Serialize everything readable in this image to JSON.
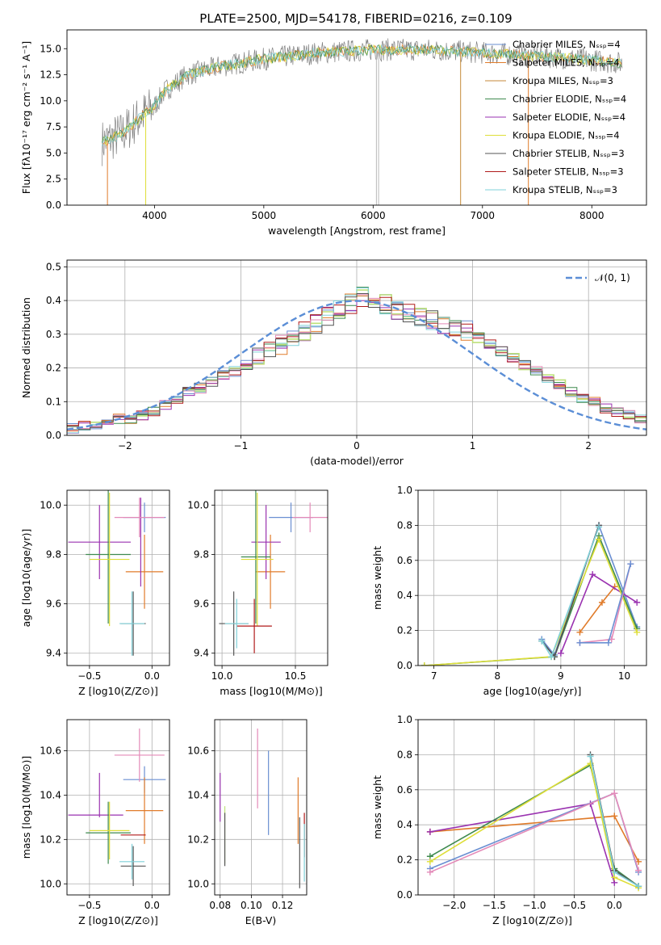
{
  "figure_title": "PLATE=2500, MJD=54178, FIBERID=0216, z=0.109",
  "palette": {
    "Chabrier MILES": "#6a8fd2",
    "Salpeter MILES": "#e07b2a",
    "Kroupa MILES": "#c58a38",
    "Chabrier ELODIE": "#3f8a4f",
    "Salpeter ELODIE": "#9a32b0",
    "Kroupa ELODIE": "#dede38",
    "Chabrier STELIB": "#555555",
    "Salpeter STELIB": "#b01a1a",
    "Kroupa STELIB": "#7fd0d8",
    "pink": "#e48ab8",
    "lime": "#bde07a",
    "normal_curve": "#5b8ed6"
  },
  "chart_data": [
    {
      "id": "spectrum",
      "type": "line",
      "xlabel": "wavelength [Angstrom, rest frame]",
      "ylabel": "Flux [fλ10⁻¹⁷ erg cm⁻² s⁻¹ A⁻¹]",
      "xlim": [
        3200,
        8500
      ],
      "ylim": [
        0,
        16.8
      ],
      "xticks": [
        "4000",
        "5000",
        "6000",
        "7000",
        "8000"
      ],
      "yticks": [
        "0.0",
        "2.5",
        "5.0",
        "7.5",
        "10.0",
        "12.5",
        "15.0"
      ],
      "continuum": [
        [
          3520,
          6.0
        ],
        [
          3700,
          6.8
        ],
        [
          3900,
          8.7
        ],
        [
          4000,
          9.5
        ],
        [
          4100,
          11.0
        ],
        [
          4300,
          12.5
        ],
        [
          4600,
          13.3
        ],
        [
          5000,
          14.0
        ],
        [
          5500,
          14.6
        ],
        [
          6000,
          14.9
        ],
        [
          6500,
          14.9
        ],
        [
          7000,
          14.6
        ],
        [
          7500,
          14.3
        ],
        [
          8000,
          13.9
        ],
        [
          8280,
          13.6
        ]
      ],
      "legend": [
        {
          "label": "Chabrier MILES, N_SSP=4"
        },
        {
          "label": "Salpeter MILES, N_SSP=4"
        },
        {
          "label": "Kroupa MILES, N_SSP=3"
        },
        {
          "label": "Chabrier ELODIE, N_SSP=4"
        },
        {
          "label": "Salpeter ELODIE, N_SSP=4"
        },
        {
          "label": "Kroupa ELODIE, N_SSP=4"
        },
        {
          "label": "Chabrier STELIB, N_SSP=3"
        },
        {
          "label": "Salpeter STELIB, N_SSP=3"
        },
        {
          "label": "Kroupa STELIB, N_SSP=3"
        }
      ]
    },
    {
      "id": "residuals",
      "type": "histogram",
      "xlabel": "(data-model)/error",
      "ylabel": "Normed distribution",
      "xlim": [
        -2.5,
        2.5
      ],
      "ylim": [
        0,
        0.52
      ],
      "xticks": [
        "−2",
        "−1",
        "0",
        "1",
        "2"
      ],
      "yticks": [
        "0.0",
        "0.1",
        "0.2",
        "0.3",
        "0.4",
        "0.5"
      ],
      "bin_width": 0.1,
      "bins_start": -2.5,
      "base_values": [
        0.02,
        0.03,
        0.03,
        0.04,
        0.05,
        0.05,
        0.06,
        0.07,
        0.09,
        0.11,
        0.13,
        0.14,
        0.16,
        0.18,
        0.19,
        0.21,
        0.23,
        0.25,
        0.27,
        0.29,
        0.31,
        0.33,
        0.35,
        0.37,
        0.39,
        0.41,
        0.4,
        0.39,
        0.37,
        0.36,
        0.35,
        0.34,
        0.33,
        0.32,
        0.31,
        0.29,
        0.27,
        0.25,
        0.23,
        0.21,
        0.19,
        0.17,
        0.15,
        0.13,
        0.11,
        0.1,
        0.08,
        0.07,
        0.06,
        0.05
      ],
      "legend": [
        {
          "label": "𝒩(0, 1)"
        }
      ]
    },
    {
      "id": "age-vs-Z",
      "type": "errorbar",
      "xlabel": "Z [log10(Z/Z⊙)]",
      "ylabel": "age  [log10(age/yr)]",
      "xlim": [
        -0.68,
        0.14
      ],
      "ylim": [
        9.35,
        10.06
      ],
      "xticks": [
        "−0.5",
        "0.0"
      ],
      "yticks": [
        "9.4",
        "9.6",
        "9.8",
        "10.0"
      ],
      "points": [
        {
          "model": "Chabrier MILES",
          "x": -0.06,
          "y": 9.95,
          "xerr": 0.17,
          "yerr": 0.06
        },
        {
          "model": "Salpeter MILES",
          "x": -0.06,
          "y": 9.73,
          "xerr": 0.15,
          "yerr": 0.15
        },
        {
          "model": "Salpeter ELODIE",
          "x": -0.42,
          "y": 9.85,
          "xerr": 0.25,
          "yerr": 0.15
        },
        {
          "model": "Salpeter ELODIE",
          "x": -0.09,
          "y": 9.85,
          "xerr": 0.0,
          "yerr": 0.18
        },
        {
          "model": "pink",
          "x": -0.1,
          "y": 9.95,
          "xerr": 0.2,
          "yerr": 0.08
        },
        {
          "model": "Chabrier ELODIE",
          "x": -0.35,
          "y": 9.8,
          "xerr": 0.18,
          "yerr": 0.28
        },
        {
          "model": "Kroupa ELODIE",
          "x": -0.34,
          "y": 9.78,
          "xerr": 0.16,
          "yerr": 0.27
        },
        {
          "model": "Chabrier STELIB",
          "x": -0.15,
          "y": 9.52,
          "xerr": 0.1,
          "yerr": 0.13
        },
        {
          "model": "Kroupa STELIB",
          "x": -0.16,
          "y": 9.52,
          "xerr": 0.1,
          "yerr": 0.13
        }
      ]
    },
    {
      "id": "age-vs-mass",
      "type": "errorbar",
      "xlabel": "mass [log10(M/M⊙)]",
      "ylabel": "",
      "xlim": [
        9.95,
        10.72
      ],
      "ylim": [
        9.35,
        10.06
      ],
      "xticks": [
        "10.0",
        "10.5"
      ],
      "yticks": [
        "9.4",
        "9.6",
        "9.8",
        "10.0"
      ],
      "points": [
        {
          "model": "Chabrier MILES",
          "x": 10.47,
          "y": 9.95,
          "xerr": 0.15,
          "yerr": 0.06
        },
        {
          "model": "Salpeter MILES",
          "x": 10.33,
          "y": 9.73,
          "xerr": 0.1,
          "yerr": 0.15
        },
        {
          "model": "Salpeter ELODIE",
          "x": 10.3,
          "y": 9.85,
          "xerr": 0.1,
          "yerr": 0.15
        },
        {
          "model": "pink",
          "x": 10.6,
          "y": 9.95,
          "xerr": 0.12,
          "yerr": 0.06
        },
        {
          "model": "Chabrier ELODIE",
          "x": 10.23,
          "y": 9.79,
          "xerr": 0.1,
          "yerr": 0.27
        },
        {
          "model": "Kroupa ELODIE",
          "x": 10.24,
          "y": 9.78,
          "xerr": 0.11,
          "yerr": 0.27
        },
        {
          "model": "Chabrier STELIB",
          "x": 10.08,
          "y": 9.52,
          "xerr": 0.1,
          "yerr": 0.13
        },
        {
          "model": "Salpeter STELIB",
          "x": 10.22,
          "y": 9.51,
          "xerr": 0.12,
          "yerr": 0.11
        },
        {
          "model": "Kroupa STELIB",
          "x": 10.1,
          "y": 9.52,
          "xerr": 0.08,
          "yerr": 0.1
        }
      ]
    },
    {
      "id": "weight-vs-age",
      "type": "line",
      "xlabel": "age  [log10(age/yr)]",
      "ylabel": "mass weight",
      "xlim": [
        6.75,
        10.35
      ],
      "ylim": [
        0,
        1
      ],
      "xticks": [
        "7",
        "8",
        "9",
        "10"
      ],
      "yticks": [
        "0.0",
        "0.2",
        "0.4",
        "0.6",
        "0.8",
        "1.0"
      ],
      "series": [
        {
          "model": "Chabrier MILES",
          "x": [
            8.7,
            8.9,
            9.6,
            10.2
          ],
          "y": [
            0.15,
            0.06,
            0.8,
            0.22
          ]
        },
        {
          "model": "Salpeter MILES",
          "x": [
            9.3,
            9.65,
            9.85
          ],
          "y": [
            0.19,
            0.36,
            0.45
          ]
        },
        {
          "model": "Salpeter ELODIE",
          "x": [
            9.0,
            9.5,
            10.2
          ],
          "y": [
            0.07,
            0.52,
            0.36
          ]
        },
        {
          "model": "Chabrier ELODIE",
          "x": [
            6.85,
            8.9,
            9.6,
            10.2
          ],
          "y": [
            0.0,
            0.05,
            0.74,
            0.21
          ]
        },
        {
          "model": "Kroupa ELODIE",
          "x": [
            6.85,
            8.85,
            9.6,
            10.2
          ],
          "y": [
            0.0,
            0.05,
            0.72,
            0.19
          ]
        },
        {
          "model": "pink",
          "x": [
            9.3,
            9.8,
            10.1
          ],
          "y": [
            0.13,
            0.15,
            0.58
          ]
        },
        {
          "model": "Chabrier MILES",
          "x": [
            9.3,
            9.75,
            10.1
          ],
          "y": [
            0.13,
            0.13,
            0.58
          ]
        },
        {
          "model": "Chabrier STELIB",
          "x": [
            8.7,
            8.9,
            9.6
          ],
          "y": [
            0.14,
            0.05,
            0.8
          ]
        },
        {
          "model": "Kroupa STELIB",
          "x": [
            8.7,
            8.85,
            9.6
          ],
          "y": [
            0.14,
            0.05,
            0.79
          ]
        }
      ]
    },
    {
      "id": "mass-vs-Z",
      "type": "errorbar",
      "xlabel": "Z [log10(Z/Z⊙)]",
      "ylabel": "mass [log10(M/M⊙)]",
      "xlim": [
        -0.68,
        0.14
      ],
      "ylim": [
        9.95,
        10.74
      ],
      "xticks": [
        "−0.5",
        "0.0"
      ],
      "yticks": [
        "10.0",
        "10.2",
        "10.4",
        "10.6"
      ],
      "points": [
        {
          "model": "Chabrier MILES",
          "x": -0.06,
          "y": 10.47,
          "xerr": 0.17,
          "yerr": 0.06
        },
        {
          "model": "pink",
          "x": -0.1,
          "y": 10.58,
          "xerr": 0.2,
          "yerr": 0.12
        },
        {
          "model": "Salpeter MILES",
          "x": -0.06,
          "y": 10.33,
          "xerr": 0.15,
          "yerr": 0.15
        },
        {
          "model": "Salpeter ELODIE",
          "x": -0.42,
          "y": 10.4,
          "xerr": 0.0,
          "yerr": 0.1
        },
        {
          "model": "Salpeter ELODIE",
          "x": -0.45,
          "y": 10.31,
          "xerr": 0.22,
          "yerr": 0.0
        },
        {
          "model": "Chabrier ELODIE",
          "x": -0.35,
          "y": 10.23,
          "xerr": 0.18,
          "yerr": 0.14
        },
        {
          "model": "Kroupa ELODIE",
          "x": -0.34,
          "y": 10.24,
          "xerr": 0.16,
          "yerr": 0.13
        },
        {
          "model": "Salpeter STELIB",
          "x": -0.15,
          "y": 10.22,
          "xerr": 0.1,
          "yerr": 0.0
        },
        {
          "model": "Chabrier STELIB",
          "x": -0.15,
          "y": 10.08,
          "xerr": 0.1,
          "yerr": 0.09
        },
        {
          "model": "Kroupa STELIB",
          "x": -0.16,
          "y": 10.1,
          "xerr": 0.1,
          "yerr": 0.08
        }
      ]
    },
    {
      "id": "mass-vs-ebv",
      "type": "errorbar",
      "xlabel": "E(B-V)",
      "ylabel": "",
      "xlim": [
        0.0765,
        0.1355
      ],
      "ylim": [
        9.95,
        10.74
      ],
      "xticks": [
        "0.08",
        "0.10",
        "0.12"
      ],
      "yticks": [
        "10.0",
        "10.2",
        "10.4",
        "10.6"
      ],
      "points": [
        {
          "model": "Salpeter ELODIE",
          "x": 0.08,
          "y": 10.39,
          "xerr": 0.0,
          "yerr": 0.11
        },
        {
          "model": "lime",
          "x": 0.083,
          "y": 10.22,
          "xerr": 0.0,
          "yerr": 0.13
        },
        {
          "model": "Chabrier STELIB",
          "x": 0.083,
          "y": 10.2,
          "xerr": 0.0,
          "yerr": 0.12
        },
        {
          "model": "pink",
          "x": 0.104,
          "y": 10.52,
          "xerr": 0.0,
          "yerr": 0.18
        },
        {
          "model": "Chabrier MILES",
          "x": 0.111,
          "y": 10.41,
          "xerr": 0.0,
          "yerr": 0.19
        },
        {
          "model": "Salpeter MILES",
          "x": 0.13,
          "y": 10.33,
          "xerr": 0.0,
          "yerr": 0.15
        },
        {
          "model": "Chabrier STELIB",
          "x": 0.131,
          "y": 10.14,
          "xerr": 0.0,
          "yerr": 0.16
        },
        {
          "model": "Salpeter STELIB",
          "x": 0.134,
          "y": 10.22,
          "xerr": 0.0,
          "yerr": 0.1
        },
        {
          "model": "Kroupa STELIB",
          "x": 0.134,
          "y": 10.14,
          "xerr": 0.0,
          "yerr": 0.13
        }
      ]
    },
    {
      "id": "weight-vs-Z",
      "type": "line",
      "xlabel": "Z [log10(Z/Z⊙)]",
      "ylabel": "mass weight",
      "xlim": [
        -2.45,
        0.4
      ],
      "ylim": [
        0,
        1
      ],
      "xticks": [
        "−2.0",
        "−1.5",
        "−1.0",
        "−0.5",
        "0.0"
      ],
      "yticks": [
        "0.0",
        "0.2",
        "0.4",
        "0.6",
        "0.8",
        "1.0"
      ],
      "series": [
        {
          "model": "Salpeter MILES",
          "x": [
            -2.3,
            0.0,
            0.3
          ],
          "y": [
            0.36,
            0.45,
            0.19
          ]
        },
        {
          "model": "Salpeter ELODIE",
          "x": [
            -2.3,
            -0.3,
            0.0
          ],
          "y": [
            0.36,
            0.52,
            0.07
          ]
        },
        {
          "model": "Chabrier ELODIE",
          "x": [
            -2.3,
            -0.3,
            0.0,
            0.3
          ],
          "y": [
            0.22,
            0.74,
            0.15,
            0.05
          ]
        },
        {
          "model": "Kroupa ELODIE",
          "x": [
            -2.3,
            -0.3,
            0.0,
            0.3
          ],
          "y": [
            0.19,
            0.75,
            0.1,
            0.04
          ]
        },
        {
          "model": "Chabrier MILES",
          "x": [
            -2.3,
            0.0,
            0.3
          ],
          "y": [
            0.15,
            0.58,
            0.13
          ]
        },
        {
          "model": "pink",
          "x": [
            -2.3,
            0.0,
            0.3
          ],
          "y": [
            0.13,
            0.58,
            0.14
          ]
        },
        {
          "model": "Chabrier STELIB",
          "x": [
            -0.3,
            0.0,
            0.3
          ],
          "y": [
            0.8,
            0.14,
            0.05
          ]
        },
        {
          "model": "Kroupa STELIB",
          "x": [
            -0.3,
            0.0,
            0.3
          ],
          "y": [
            0.79,
            0.13,
            0.05
          ]
        }
      ]
    }
  ]
}
